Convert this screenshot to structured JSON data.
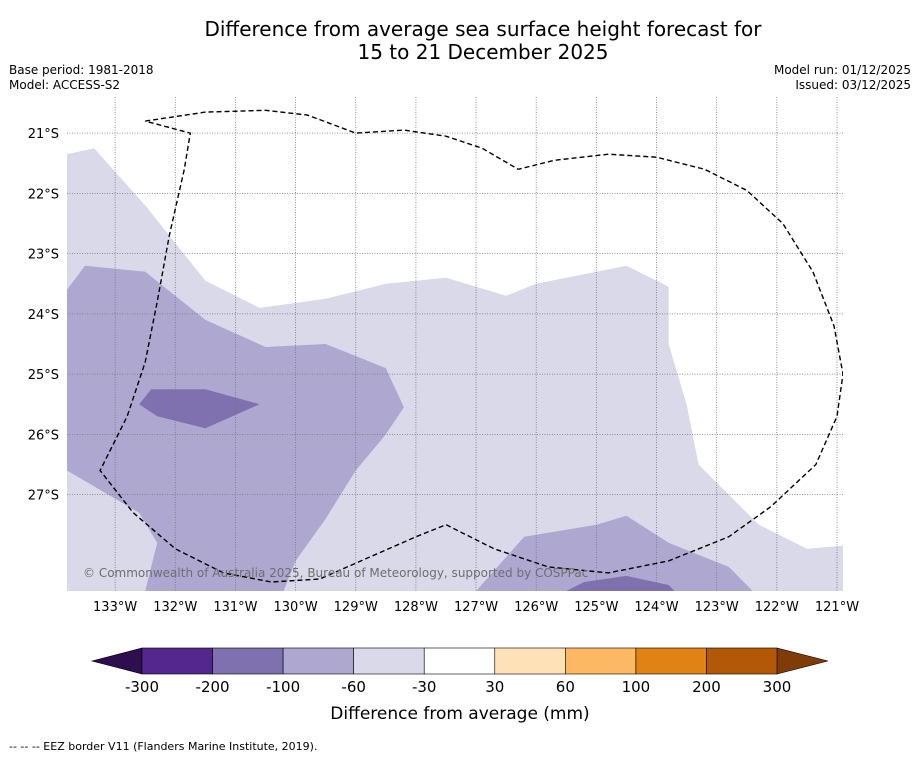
{
  "title_line1": "Difference from average sea surface height forecast for",
  "title_line2": "15 to 21 December 2025",
  "base_period": "Base period: 1981-2018",
  "model": "Model: ACCESS-S2",
  "model_run": "Model run: 01/12/2025",
  "issued": "Issued: 03/12/2025",
  "copyright": "© Commonwealth of Australia 2025, Bureau of Meteorology, supported by COSPPac",
  "footer": "--  --  -- EEZ border V11 (Flanders Marine Institute, 2019).",
  "chart_data": {
    "type": "heatmap",
    "title": "Difference from average sea surface height forecast for 15 to 21 December 2025",
    "xlabel": "",
    "ylabel": "",
    "xlim": [
      -133.8,
      -120.9
    ],
    "ylim": [
      -28.6,
      -20.4
    ],
    "x_ticks": [
      -133,
      -132,
      -131,
      -130,
      -129,
      -128,
      -127,
      -126,
      -125,
      -124,
      -123,
      -122,
      -121
    ],
    "x_tick_labels": [
      "133°W",
      "132°W",
      "131°W",
      "130°W",
      "129°W",
      "128°W",
      "127°W",
      "126°W",
      "125°W",
      "124°W",
      "123°W",
      "122°W",
      "121°W"
    ],
    "y_ticks": [
      -21,
      -22,
      -23,
      -24,
      -25,
      -26,
      -27
    ],
    "y_tick_labels": [
      "21°S",
      "22°S",
      "23°S",
      "24°S",
      "25°S",
      "26°S",
      "27°S"
    ],
    "grid": true,
    "colorbar": {
      "title": "Difference from average (mm)",
      "boundaries": [
        -300,
        -200,
        -100,
        -60,
        -30,
        30,
        60,
        100,
        200,
        300
      ],
      "boundary_labels": [
        "-300",
        "-200",
        "-100",
        "-60",
        "-30",
        "30",
        "60",
        "100",
        "200",
        "300"
      ],
      "colors": [
        "#54278f",
        "#7f71af",
        "#aea7d0",
        "#d9d9ea",
        "#ffffff",
        "#fee1b7",
        "#fdb863",
        "#e08214",
        "#b35806"
      ],
      "under_color": "#2d0e4e",
      "over_color": "#7f3b08"
    },
    "levels": [
      {
        "range": "-60 to -30",
        "color": "#d9d9ea",
        "regions": [
          [
            [
              -133.8,
              -21.35
            ],
            [
              -133.35,
              -21.25
            ],
            [
              -132.5,
              -22.2
            ],
            [
              -131.5,
              -23.45
            ],
            [
              -130.6,
              -23.9
            ],
            [
              -129.5,
              -23.75
            ],
            [
              -128.5,
              -23.5
            ],
            [
              -127.5,
              -23.4
            ],
            [
              -126.5,
              -23.7
            ],
            [
              -126.0,
              -23.5
            ],
            [
              -124.5,
              -23.2
            ],
            [
              -123.8,
              -23.55
            ],
            [
              -123.8,
              -24.5
            ],
            [
              -123.5,
              -25.5
            ],
            [
              -123.3,
              -26.5
            ],
            [
              -122.3,
              -27.5
            ],
            [
              -121.5,
              -27.9
            ],
            [
              -120.9,
              -27.85
            ],
            [
              -120.9,
              -28.6
            ],
            [
              -133.8,
              -28.6
            ]
          ]
        ]
      },
      {
        "range": "-100 to -60",
        "color": "#aea7d0",
        "regions": [
          [
            [
              -133.8,
              -23.6
            ],
            [
              -133.5,
              -23.2
            ],
            [
              -132.5,
              -23.3
            ],
            [
              -131.5,
              -24.1
            ],
            [
              -130.5,
              -24.55
            ],
            [
              -129.5,
              -24.5
            ],
            [
              -128.5,
              -24.9
            ],
            [
              -128.2,
              -25.55
            ],
            [
              -128.5,
              -26.0
            ],
            [
              -129.0,
              -26.6
            ],
            [
              -129.5,
              -27.4
            ],
            [
              -130.0,
              -28.1
            ],
            [
              -130.2,
              -28.6
            ],
            [
              -132.5,
              -28.6
            ],
            [
              -132.3,
              -27.8
            ],
            [
              -132.6,
              -27.3
            ],
            [
              -133.8,
              -26.6
            ]
          ],
          [
            [
              -127.0,
              -28.6
            ],
            [
              -126.2,
              -27.7
            ],
            [
              -125.0,
              -27.5
            ],
            [
              -124.5,
              -27.35
            ],
            [
              -123.8,
              -27.8
            ],
            [
              -122.8,
              -28.2
            ],
            [
              -122.4,
              -28.6
            ]
          ]
        ]
      },
      {
        "range": "-200 to -100",
        "color": "#7f71af",
        "regions": [
          [
            [
              -132.6,
              -25.5
            ],
            [
              -132.4,
              -25.25
            ],
            [
              -131.5,
              -25.25
            ],
            [
              -130.6,
              -25.5
            ],
            [
              -131.5,
              -25.9
            ],
            [
              -132.3,
              -25.7
            ]
          ],
          [
            [
              -125.5,
              -28.6
            ],
            [
              -125.2,
              -28.45
            ],
            [
              -124.5,
              -28.35
            ],
            [
              -123.8,
              -28.5
            ],
            [
              -123.7,
              -28.6
            ]
          ]
        ]
      }
    ],
    "eez_border": [
      [
        -132.5,
        -20.8
      ],
      [
        -131.5,
        -20.65
      ],
      [
        -130.5,
        -20.62
      ],
      [
        -129.8,
        -20.7
      ],
      [
        -129.0,
        -21.0
      ],
      [
        -128.2,
        -20.95
      ],
      [
        -127.5,
        -21.05
      ],
      [
        -126.9,
        -21.25
      ],
      [
        -126.3,
        -21.6
      ],
      [
        -125.7,
        -21.45
      ],
      [
        -124.8,
        -21.35
      ],
      [
        -124.0,
        -21.4
      ],
      [
        -123.2,
        -21.6
      ],
      [
        -122.5,
        -21.95
      ],
      [
        -121.9,
        -22.5
      ],
      [
        -121.4,
        -23.3
      ],
      [
        -121.05,
        -24.2
      ],
      [
        -120.9,
        -25.0
      ],
      [
        -121.0,
        -25.7
      ],
      [
        -121.35,
        -26.5
      ],
      [
        -122.1,
        -27.2
      ],
      [
        -122.8,
        -27.7
      ],
      [
        -123.8,
        -28.1
      ],
      [
        -124.8,
        -28.3
      ],
      [
        -125.8,
        -28.2
      ],
      [
        -126.7,
        -27.9
      ],
      [
        -127.5,
        -27.5
      ],
      [
        -128.0,
        -27.7
      ],
      [
        -128.8,
        -28.05
      ],
      [
        -129.6,
        -28.4
      ],
      [
        -130.4,
        -28.45
      ],
      [
        -131.2,
        -28.3
      ],
      [
        -132.0,
        -27.9
      ],
      [
        -132.7,
        -27.3
      ],
      [
        -133.25,
        -26.6
      ],
      [
        -132.8,
        -25.7
      ],
      [
        -132.5,
        -24.8
      ],
      [
        -132.3,
        -23.8
      ],
      [
        -132.1,
        -22.7
      ],
      [
        -131.85,
        -21.6
      ],
      [
        -131.75,
        -21.0
      ],
      [
        -132.5,
        -20.8
      ]
    ]
  }
}
